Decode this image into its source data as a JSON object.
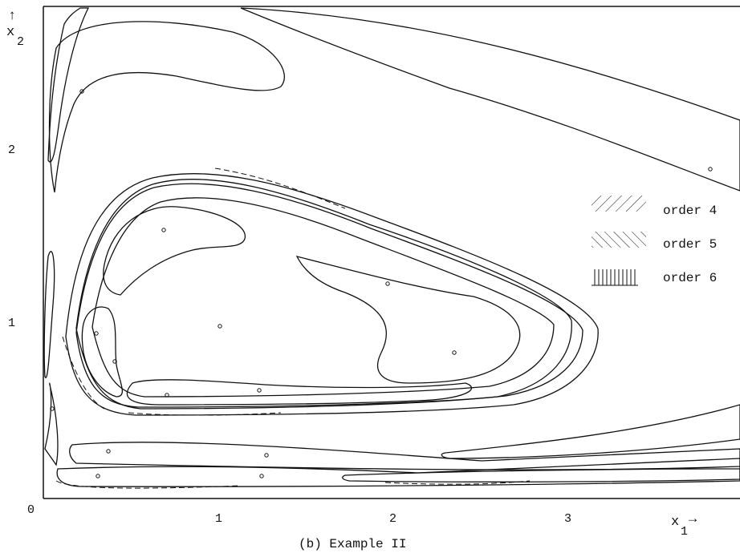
{
  "figure": {
    "caption": "(b) Example II",
    "x_axis": {
      "name": "x",
      "subscript": "1",
      "arrow": "→",
      "ticks": [
        "0",
        "1",
        "2",
        "3"
      ]
    },
    "y_axis": {
      "name": "x",
      "subscript": "2",
      "arrow": "↑",
      "ticks": [
        "1",
        "2"
      ]
    },
    "legend": [
      {
        "label": "order 4",
        "pattern": "backslash-hatch"
      },
      {
        "label": "order 5",
        "pattern": "slash-hatch"
      },
      {
        "label": "order 6",
        "pattern": "vertical-hatch"
      }
    ]
  }
}
